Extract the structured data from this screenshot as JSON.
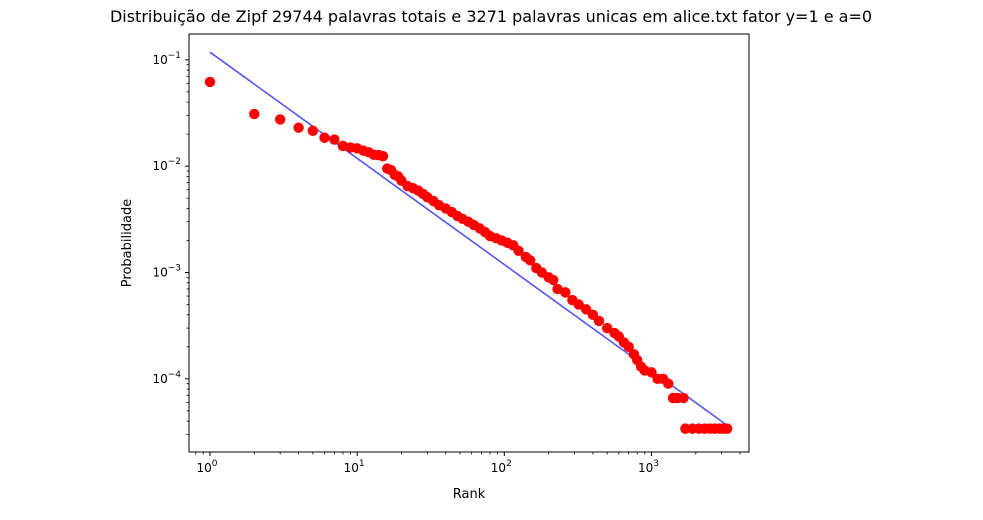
{
  "chart_data": {
    "type": "scatter",
    "title": "Distribuição de Zipf 29744 palavras totais e 3271 palavras unicas em alice.txt fator y=1 e a=0",
    "xlabel": "Rank",
    "ylabel": "Probabilidade",
    "xscale": "log",
    "yscale": "log",
    "xlim": [
      0.72,
      4600
    ],
    "ylim": [
      2.05e-05,
      0.175
    ],
    "grid": false,
    "x_ticks": [
      {
        "value": 1,
        "base": "10",
        "exp": "0"
      },
      {
        "value": 10,
        "base": "10",
        "exp": "1"
      },
      {
        "value": 100,
        "base": "10",
        "exp": "2"
      },
      {
        "value": 1000,
        "base": "10",
        "exp": "3"
      }
    ],
    "y_ticks": [
      {
        "value": 0.0001,
        "base": "10",
        "exp": "−4"
      },
      {
        "value": 0.001,
        "base": "10",
        "exp": "−3"
      },
      {
        "value": 0.01,
        "base": "10",
        "exp": "−2"
      },
      {
        "value": 0.1,
        "base": "10",
        "exp": "−1"
      }
    ],
    "colors": {
      "scatter": "#ff0000",
      "line": "#5555ee",
      "axes": "#000000"
    },
    "series": [
      {
        "kind": "line",
        "points": [
          [
            1,
            0.118
          ],
          [
            3271,
            3.65e-05
          ]
        ]
      },
      {
        "kind": "scatter",
        "points": [
          [
            1,
            0.062
          ],
          [
            2,
            0.031
          ],
          [
            3,
            0.0275
          ],
          [
            4,
            0.023
          ],
          [
            5,
            0.0215
          ],
          [
            6,
            0.0185
          ],
          [
            7,
            0.0178
          ],
          [
            8,
            0.0155
          ],
          [
            9,
            0.015
          ],
          [
            10,
            0.0147
          ],
          [
            11,
            0.014
          ],
          [
            12,
            0.0135
          ],
          [
            13,
            0.0128
          ],
          [
            14,
            0.0127
          ],
          [
            15,
            0.0124
          ],
          [
            16,
            0.0095
          ],
          [
            17,
            0.0092
          ],
          [
            18,
            0.0083
          ],
          [
            19,
            0.008
          ],
          [
            20,
            0.0073
          ],
          [
            22,
            0.0065
          ],
          [
            24,
            0.0062
          ],
          [
            26,
            0.0059
          ],
          [
            28,
            0.0055
          ],
          [
            30,
            0.0051
          ],
          [
            33,
            0.0047
          ],
          [
            36,
            0.0043
          ],
          [
            40,
            0.004
          ],
          [
            44,
            0.0037
          ],
          [
            48,
            0.0034
          ],
          [
            52,
            0.0032
          ],
          [
            57,
            0.003
          ],
          [
            62,
            0.0028
          ],
          [
            68,
            0.0026
          ],
          [
            74,
            0.0024
          ],
          [
            80,
            0.0022
          ],
          [
            88,
            0.0021
          ],
          [
            96,
            0.002
          ],
          [
            105,
            0.0019
          ],
          [
            115,
            0.0018
          ],
          [
            125,
            0.0016
          ],
          [
            140,
            0.0014
          ],
          [
            150,
            0.0013
          ],
          [
            165,
            0.0011
          ],
          [
            180,
            0.001
          ],
          [
            200,
            0.0009
          ],
          [
            215,
            0.00085
          ],
          [
            230,
            0.0007
          ],
          [
            260,
            0.00065
          ],
          [
            290,
            0.00055
          ],
          [
            320,
            0.0005
          ],
          [
            360,
            0.00045
          ],
          [
            400,
            0.0004
          ],
          [
            440,
            0.00035
          ],
          [
            500,
            0.0003
          ],
          [
            560,
            0.00027
          ],
          [
            600,
            0.00025
          ],
          [
            650,
            0.00022
          ],
          [
            700,
            0.0002
          ],
          [
            760,
            0.00017
          ],
          [
            800,
            0.00015
          ],
          [
            850,
            0.00013
          ],
          [
            900,
            0.00012
          ],
          [
            1000,
            0.000115
          ],
          [
            1100,
            0.0001
          ],
          [
            1200,
            0.0001
          ],
          [
            1300,
            9e-05
          ],
          [
            1400,
            6.6e-05
          ],
          [
            1500,
            6.6e-05
          ],
          [
            1650,
            6.6e-05
          ],
          [
            1700,
            3.4e-05
          ],
          [
            1900,
            3.4e-05
          ],
          [
            2100,
            3.4e-05
          ],
          [
            2300,
            3.4e-05
          ],
          [
            2500,
            3.4e-05
          ],
          [
            2700,
            3.4e-05
          ],
          [
            2900,
            3.4e-05
          ],
          [
            3100,
            3.4e-05
          ],
          [
            3271,
            3.4e-05
          ]
        ]
      }
    ]
  }
}
